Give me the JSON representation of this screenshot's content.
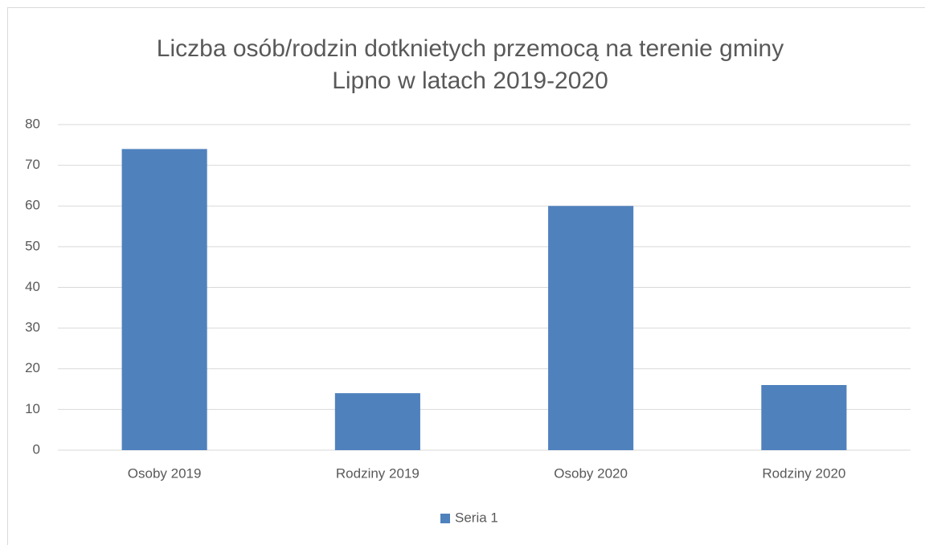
{
  "chart_data": {
    "type": "bar",
    "title": [
      "Liczba osób/rodzin dotknietych przemocą na terenie gminy",
      "Lipno w latach 2019-2020"
    ],
    "categories": [
      "Osoby 2019",
      "Rodziny 2019",
      "Osoby 2020",
      "Rodziny 2020"
    ],
    "series": [
      {
        "name": "Seria 1",
        "color": "#4f81bd",
        "values": [
          74,
          14,
          60,
          16
        ]
      }
    ],
    "ylim": [
      0,
      80
    ],
    "yticks": [
      0,
      10,
      20,
      30,
      40,
      50,
      60,
      70,
      80
    ],
    "grid": true,
    "legend": "bottom"
  }
}
